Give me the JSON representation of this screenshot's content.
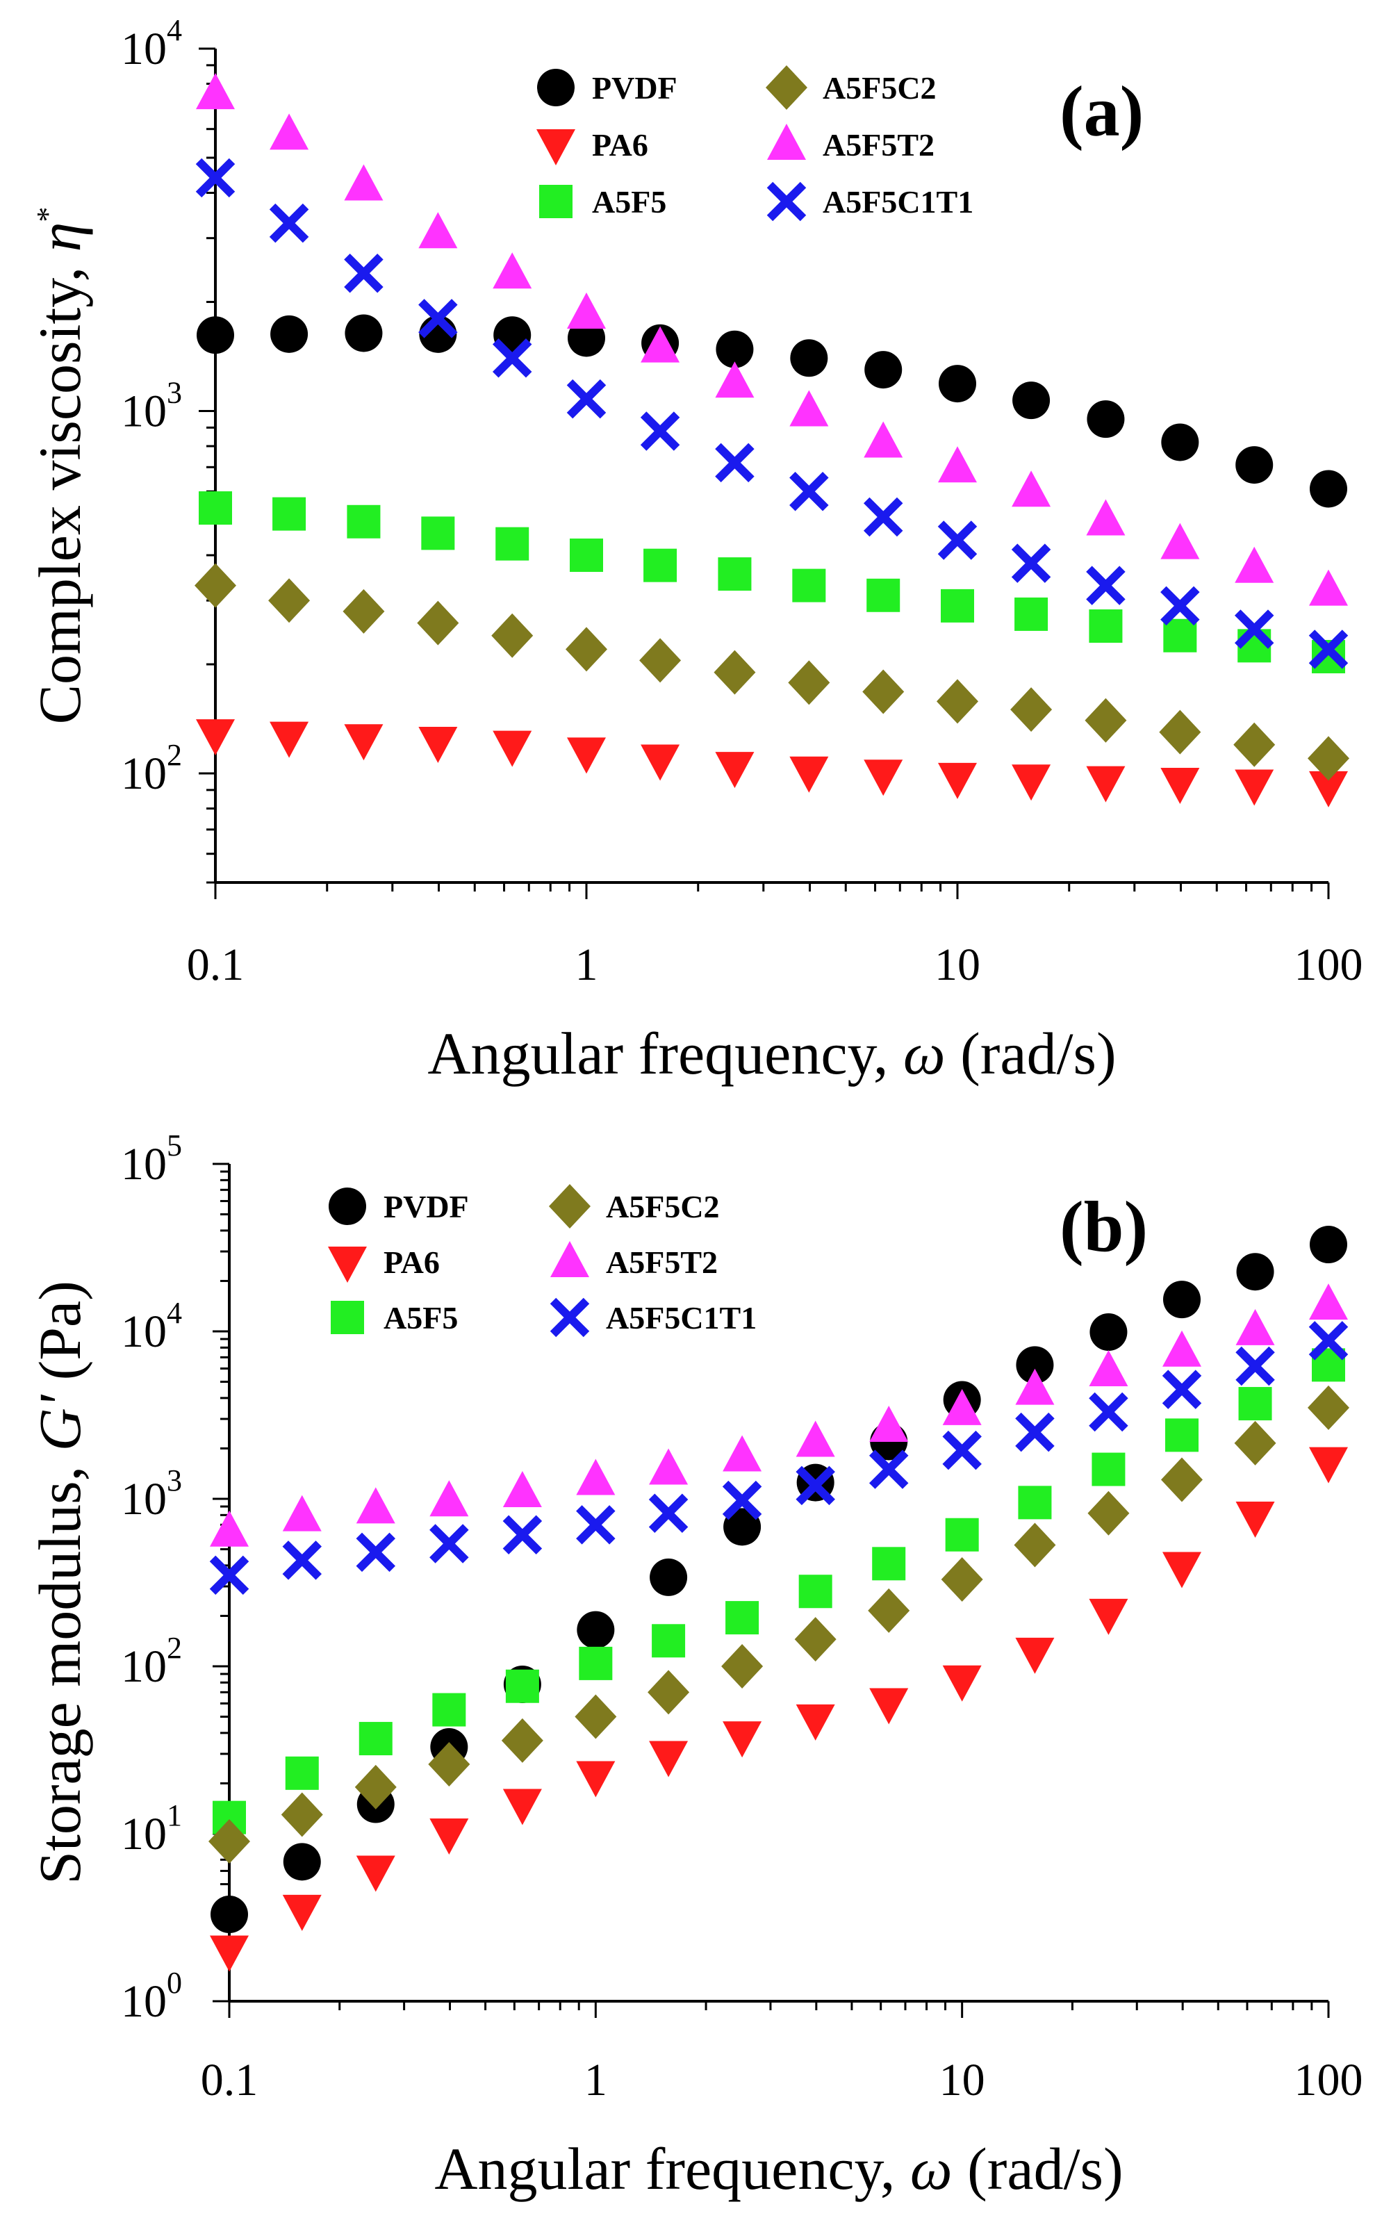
{
  "chart_data": [
    {
      "type": "scatter",
      "panel_label": "(a)",
      "xlabel": {
        "main": "Angular frequency, ",
        "symbol": "ω",
        "unit": " (rad/s)"
      },
      "ylabel": {
        "main": "Complex viscosity, ",
        "symbol": "η",
        "superscript": "*"
      },
      "xscale": "log",
      "yscale": "log",
      "xlim": [
        0.1,
        100
      ],
      "ylim": [
        50,
        10000
      ],
      "x_ticks": [
        {
          "value": 0.1,
          "label": "0.1"
        },
        {
          "value": 1,
          "label": "1"
        },
        {
          "value": 10,
          "label": "10"
        },
        {
          "value": 100,
          "label": "100"
        }
      ],
      "y_ticks": [
        {
          "value": 100,
          "base": "10",
          "exp": "2"
        },
        {
          "value": 1000,
          "base": "10",
          "exp": "3"
        },
        {
          "value": 10000,
          "base": "10",
          "exp": "4"
        }
      ],
      "legend_position": "top-center",
      "x": [
        0.1,
        0.158,
        0.251,
        0.398,
        0.631,
        1,
        1.58,
        2.51,
        3.98,
        6.31,
        10,
        15.8,
        25.1,
        39.8,
        63.1,
        100
      ],
      "series": [
        {
          "name": "PVDF",
          "marker": "circle",
          "color": "#000000",
          "values": [
            1620,
            1630,
            1640,
            1630,
            1620,
            1590,
            1540,
            1480,
            1400,
            1300,
            1190,
            1070,
            950,
            820,
            710,
            610
          ]
        },
        {
          "name": "PA6",
          "marker": "triangle-down",
          "color": "#ff1a1a",
          "values": [
            128,
            126,
            124,
            122,
            119,
            114,
            109,
            104,
            101,
            99,
            97,
            96,
            95,
            94,
            93,
            92
          ]
        },
        {
          "name": "A5F5",
          "marker": "square",
          "color": "#22ee22",
          "values": [
            540,
            520,
            495,
            460,
            430,
            400,
            375,
            355,
            330,
            310,
            290,
            275,
            255,
            240,
            225,
            210
          ]
        },
        {
          "name": "A5F5C2",
          "marker": "diamond",
          "color": "#7f7a1e",
          "values": [
            330,
            300,
            280,
            260,
            240,
            220,
            205,
            190,
            178,
            168,
            158,
            150,
            140,
            130,
            120,
            110
          ]
        },
        {
          "name": "A5F5T2",
          "marker": "triangle-up",
          "color": "#ff33ff",
          "values": [
            7500,
            5800,
            4200,
            3100,
            2400,
            1860,
            1500,
            1200,
            1000,
            820,
            700,
            600,
            500,
            430,
            370,
            320
          ]
        },
        {
          "name": "A5F5C1T1",
          "marker": "x",
          "color": "#1a1aee",
          "values": [
            4400,
            3300,
            2400,
            1800,
            1400,
            1080,
            880,
            720,
            600,
            510,
            440,
            380,
            330,
            290,
            250,
            220
          ]
        }
      ]
    },
    {
      "type": "scatter",
      "panel_label": "(b)",
      "xlabel": {
        "main": "Angular frequency, ",
        "symbol": "ω",
        "unit": " (rad/s)"
      },
      "ylabel": {
        "main": "Storage modulus, ",
        "symbol": "G'",
        "unit": " (Pa)"
      },
      "xscale": "log",
      "yscale": "log",
      "xlim": [
        0.1,
        100
      ],
      "ylim": [
        1,
        100000
      ],
      "x_ticks": [
        {
          "value": 0.1,
          "label": "0.1"
        },
        {
          "value": 1,
          "label": "1"
        },
        {
          "value": 10,
          "label": "10"
        },
        {
          "value": 100,
          "label": "100"
        }
      ],
      "y_ticks": [
        {
          "value": 1,
          "base": "10",
          "exp": "0"
        },
        {
          "value": 10,
          "base": "10",
          "exp": "1"
        },
        {
          "value": 100,
          "base": "10",
          "exp": "2"
        },
        {
          "value": 1000,
          "base": "10",
          "exp": "3"
        },
        {
          "value": 10000,
          "base": "10",
          "exp": "4"
        },
        {
          "value": 100000,
          "base": "10",
          "exp": "5"
        }
      ],
      "legend_position": "top-left",
      "x": [
        0.1,
        0.158,
        0.251,
        0.398,
        0.631,
        1,
        1.58,
        2.51,
        3.98,
        6.31,
        10,
        15.8,
        25.1,
        39.8,
        63.1,
        100
      ],
      "series": [
        {
          "name": "PVDF",
          "marker": "circle",
          "color": "#000000",
          "values": [
            3.3,
            6.8,
            15,
            33,
            78,
            165,
            340,
            680,
            1250,
            2200,
            3900,
            6300,
            9900,
            15500,
            22700,
            33000
          ]
        },
        {
          "name": "PA6",
          "marker": "triangle-down",
          "color": "#ff1a1a",
          "values": [
            2,
            3.5,
            6,
            10,
            15,
            22,
            29,
            38,
            48,
            60,
            82,
            120,
            205,
            390,
            780,
            1650
          ]
        },
        {
          "name": "A5F5",
          "marker": "square",
          "color": "#22ee22",
          "values": [
            12.5,
            23,
            37,
            55,
            76,
            104,
            142,
            195,
            280,
            410,
            610,
            950,
            1500,
            2400,
            3700,
            6300
          ]
        },
        {
          "name": "A5F5C2",
          "marker": "diamond",
          "color": "#7f7a1e",
          "values": [
            9,
            13,
            19,
            26,
            36,
            50,
            70,
            100,
            145,
            215,
            330,
            530,
            820,
            1300,
            2150,
            3500
          ]
        },
        {
          "name": "A5F5T2",
          "marker": "triangle-up",
          "color": "#ff33ff",
          "values": [
            640,
            790,
            880,
            970,
            1100,
            1300,
            1500,
            1800,
            2200,
            2700,
            3400,
            4500,
            5800,
            7600,
            10200,
            14500
          ]
        },
        {
          "name": "A5F5C1T1",
          "marker": "x",
          "color": "#1a1aee",
          "values": [
            350,
            430,
            480,
            540,
            610,
            700,
            820,
            980,
            1200,
            1500,
            1950,
            2500,
            3300,
            4500,
            6200,
            8800
          ]
        }
      ]
    }
  ]
}
